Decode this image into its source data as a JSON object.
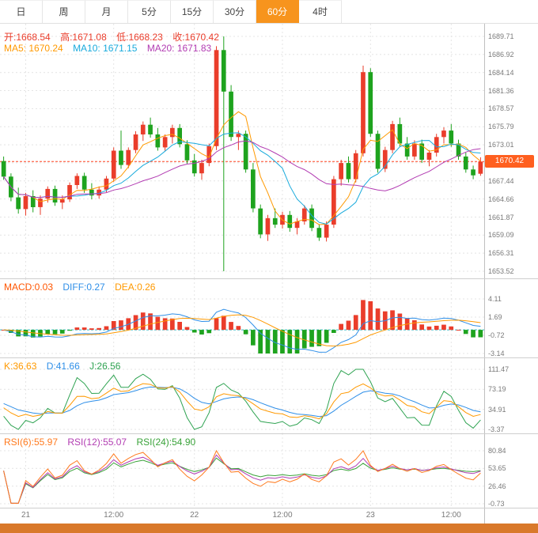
{
  "tabs": [
    {
      "label": "日",
      "active": false
    },
    {
      "label": "周",
      "active": false
    },
    {
      "label": "月",
      "active": false
    },
    {
      "label": "5分",
      "active": false
    },
    {
      "label": "15分",
      "active": false
    },
    {
      "label": "30分",
      "active": false
    },
    {
      "label": "60分",
      "active": true
    },
    {
      "label": "4时",
      "active": false
    }
  ],
  "main": {
    "ohlc": {
      "open": "开:1668.54",
      "high": "高:1671.08",
      "low": "低:1668.23",
      "close": "收:1670.42"
    },
    "ma": {
      "ma5": "MA5: 1670.24",
      "ma10": "MA10: 1671.15",
      "ma20": "MA20: 1671.83"
    },
    "last_price": "1670.42"
  },
  "indicators": {
    "macd": {
      "macd": "MACD:0.03",
      "diff": "DIFF:0.27",
      "dea": "DEA:0.26"
    },
    "kdj": {
      "k": "K:36.63",
      "d": "D:41.66",
      "j": "J:26.56"
    },
    "rsi": {
      "rsi6": "RSI(6):55.97",
      "rsi12": "RSI(12):55.07",
      "rsi24": "RSI(24):54.90"
    }
  },
  "colors": {
    "up": "#ea3d2b",
    "down": "#1ea31e",
    "ma5": "#ff9900",
    "ma10": "#18aadc",
    "ma20": "#b23cb2",
    "macd_label": "#ff5500",
    "diff": "#2f8fe8",
    "dea": "#ff9900",
    "k": "#ff9900",
    "d": "#2f8fe8",
    "j": "#2fa352",
    "rsi6": "#ff7a1e",
    "rsi12": "#b23cb2",
    "rsi24": "#3aa33a",
    "tab_active_bg": "#f7941d",
    "tab_active_text": "#ffffff",
    "tab_text": "#444444",
    "badge_bg": "#ff5f1f",
    "badge_text": "#ffffff",
    "last_price_line": "#ff4422",
    "zero_line": "#2fbccc",
    "grid": "#e4e4e4",
    "separator": "#cfcfcf",
    "axis_text": "#7a7a7a",
    "bottom_bar": "#d9792b"
  },
  "chart_data": {
    "type": "candlestick",
    "timeframe": "60分",
    "ohlc_last": {
      "open": 1668.54,
      "high": 1671.08,
      "low": 1668.23,
      "close": 1670.42
    },
    "ma_values": {
      "ma5": 1670.24,
      "ma10": 1671.15,
      "ma20": 1671.83
    },
    "macd": {
      "macd": 0.03,
      "diff": 0.27,
      "dea": 0.26,
      "axis": [
        "4.11",
        "1.69",
        "-0.72",
        "-3.14"
      ]
    },
    "kdj": {
      "k": 36.63,
      "d": 41.66,
      "j": 26.56,
      "axis": [
        "111.47",
        "73.19",
        "34.91",
        "-3.37"
      ]
    },
    "rsi": {
      "rsi6": 55.97,
      "rsi12": 55.07,
      "rsi24": 54.9,
      "axis": [
        "80.84",
        "53.65",
        "26.46",
        "-0.73"
      ]
    },
    "price_axis": {
      "min": 1653.52,
      "max": 1689.71,
      "labels": [
        "1689.71",
        "1686.92",
        "1684.14",
        "1681.36",
        "1678.57",
        "1675.79",
        "1673.01",
        "1670.22",
        "1667.44",
        "1664.66",
        "1661.87",
        "1659.09",
        "1656.31",
        "1653.52"
      ]
    },
    "x_ticks": [
      {
        "index": 3,
        "label": "21"
      },
      {
        "index": 15,
        "label": "12:00"
      },
      {
        "index": 26,
        "label": "22"
      },
      {
        "index": 38,
        "label": "12:00"
      },
      {
        "index": 50,
        "label": "23"
      },
      {
        "index": 61,
        "label": "12:00"
      }
    ],
    "candles": [
      [
        1670.5,
        1671.2,
        1667.6,
        1668.1
      ],
      [
        1668.1,
        1668.6,
        1664.3,
        1664.9
      ],
      [
        1664.9,
        1666.4,
        1662.4,
        1663.1
      ],
      [
        1663.1,
        1665.6,
        1662.1,
        1665.1
      ],
      [
        1665.1,
        1666.0,
        1662.6,
        1663.4
      ],
      [
        1663.4,
        1665.2,
        1662.2,
        1664.7
      ],
      [
        1664.7,
        1666.6,
        1664.1,
        1666.2
      ],
      [
        1666.2,
        1666.7,
        1663.6,
        1664.1
      ],
      [
        1664.1,
        1665.2,
        1663.1,
        1664.6
      ],
      [
        1664.6,
        1667.2,
        1664.2,
        1666.8
      ],
      [
        1666.8,
        1668.6,
        1666.2,
        1668.2
      ],
      [
        1668.2,
        1668.7,
        1665.6,
        1666.1
      ],
      [
        1666.1,
        1667.1,
        1664.6,
        1665.2
      ],
      [
        1665.2,
        1666.6,
        1664.7,
        1666.1
      ],
      [
        1666.1,
        1668.2,
        1665.7,
        1667.8
      ],
      [
        1667.8,
        1672.6,
        1667.3,
        1672.1
      ],
      [
        1672.1,
        1675.2,
        1669.3,
        1669.9
      ],
      [
        1669.9,
        1672.6,
        1669.4,
        1672.2
      ],
      [
        1672.2,
        1675.1,
        1671.7,
        1674.6
      ],
      [
        1674.6,
        1676.6,
        1673.6,
        1676.1
      ],
      [
        1676.1,
        1677.2,
        1674.1,
        1674.6
      ],
      [
        1674.6,
        1675.6,
        1672.1,
        1672.6
      ],
      [
        1672.6,
        1674.6,
        1672.1,
        1674.2
      ],
      [
        1674.2,
        1676.1,
        1673.2,
        1675.6
      ],
      [
        1675.6,
        1676.2,
        1672.6,
        1673.1
      ],
      [
        1673.1,
        1673.7,
        1670.1,
        1670.6
      ],
      [
        1670.6,
        1671.6,
        1668.1,
        1668.6
      ],
      [
        1668.6,
        1670.7,
        1667.6,
        1670.2
      ],
      [
        1670.2,
        1673.2,
        1669.7,
        1672.8
      ],
      [
        1672.8,
        1688.2,
        1672.2,
        1687.6
      ],
      [
        1687.6,
        1689.71,
        1653.52,
        1681.2
      ],
      [
        1681.2,
        1682.2,
        1673.6,
        1674.2
      ],
      [
        1674.2,
        1675.2,
        1672.2,
        1674.7
      ],
      [
        1674.7,
        1675.2,
        1668.7,
        1669.2
      ],
      [
        1669.2,
        1670.2,
        1662.6,
        1663.2
      ],
      [
        1663.2,
        1663.8,
        1658.6,
        1659.2
      ],
      [
        1659.2,
        1662.2,
        1658.2,
        1661.7
      ],
      [
        1661.7,
        1663.2,
        1660.2,
        1660.7
      ],
      [
        1660.7,
        1662.7,
        1660.1,
        1662.2
      ],
      [
        1662.2,
        1662.8,
        1659.6,
        1660.2
      ],
      [
        1660.2,
        1661.7,
        1659.2,
        1661.2
      ],
      [
        1661.2,
        1663.7,
        1660.7,
        1663.2
      ],
      [
        1663.2,
        1663.8,
        1659.7,
        1660.2
      ],
      [
        1660.2,
        1660.8,
        1658.2,
        1658.7
      ],
      [
        1658.7,
        1661.2,
        1658.1,
        1660.7
      ],
      [
        1660.7,
        1668.2,
        1660.2,
        1667.7
      ],
      [
        1667.7,
        1670.7,
        1666.7,
        1670.2
      ],
      [
        1670.2,
        1671.2,
        1667.2,
        1667.7
      ],
      [
        1667.7,
        1672.2,
        1667.2,
        1671.7
      ],
      [
        1671.7,
        1685.2,
        1671.2,
        1684.2
      ],
      [
        1684.2,
        1684.8,
        1674.2,
        1674.7
      ],
      [
        1674.7,
        1675.2,
        1668.7,
        1669.3
      ],
      [
        1669.3,
        1672.7,
        1668.8,
        1672.2
      ],
      [
        1672.2,
        1676.7,
        1671.7,
        1676.2
      ],
      [
        1676.2,
        1677.2,
        1672.7,
        1673.2
      ],
      [
        1673.2,
        1674.2,
        1670.7,
        1671.2
      ],
      [
        1671.2,
        1673.7,
        1670.7,
        1673.2
      ],
      [
        1673.2,
        1673.8,
        1670.2,
        1670.7
      ],
      [
        1670.7,
        1672.2,
        1669.7,
        1671.8
      ],
      [
        1671.8,
        1674.7,
        1671.2,
        1674.2
      ],
      [
        1674.2,
        1675.7,
        1673.2,
        1675.2
      ],
      [
        1675.2,
        1676.2,
        1672.7,
        1673.2
      ],
      [
        1673.2,
        1673.8,
        1670.7,
        1671.2
      ],
      [
        1671.2,
        1671.8,
        1668.7,
        1669.2
      ],
      [
        1669.2,
        1669.8,
        1667.7,
        1668.3
      ],
      [
        1668.54,
        1671.08,
        1668.23,
        1670.42
      ]
    ]
  }
}
